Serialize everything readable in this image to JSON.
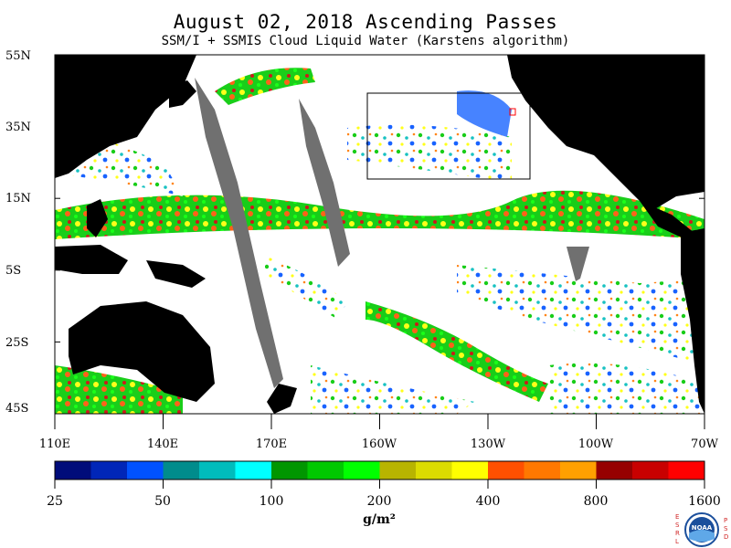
{
  "header": {
    "title": "August 02, 2018  Ascending Passes",
    "subtitle": "SSM/I + SSMIS Cloud Liquid Water (Karstens algorithm)"
  },
  "map": {
    "lat_labels": [
      "55N",
      "35N",
      "15N",
      "5S",
      "25S",
      "45S"
    ],
    "lon_labels": [
      "110E",
      "140E",
      "170E",
      "160W",
      "130W",
      "100W",
      "70W"
    ],
    "colors": {
      "land": "#000000",
      "no_data_swath": "#707070",
      "clear": "#ffffff",
      "box_outline": "#000000",
      "marker": "#ff0000"
    }
  },
  "colorbar": {
    "labels": [
      "25",
      "50",
      "100",
      "200",
      "400",
      "800",
      "1600"
    ],
    "units": "g/m²",
    "colors": [
      "#000c7a",
      "#0026b8",
      "#0052ff",
      "#008c8c",
      "#00bcbc",
      "#00ffff",
      "#009600",
      "#00c800",
      "#00ff00",
      "#b8b400",
      "#dcdc00",
      "#ffff00",
      "#ff5000",
      "#ff7800",
      "#ffa000",
      "#960000",
      "#c80000",
      "#ff0000"
    ]
  },
  "logo": {
    "left_letters": "ESRL",
    "right_letters": "PSD",
    "emblem": "NOAA"
  }
}
